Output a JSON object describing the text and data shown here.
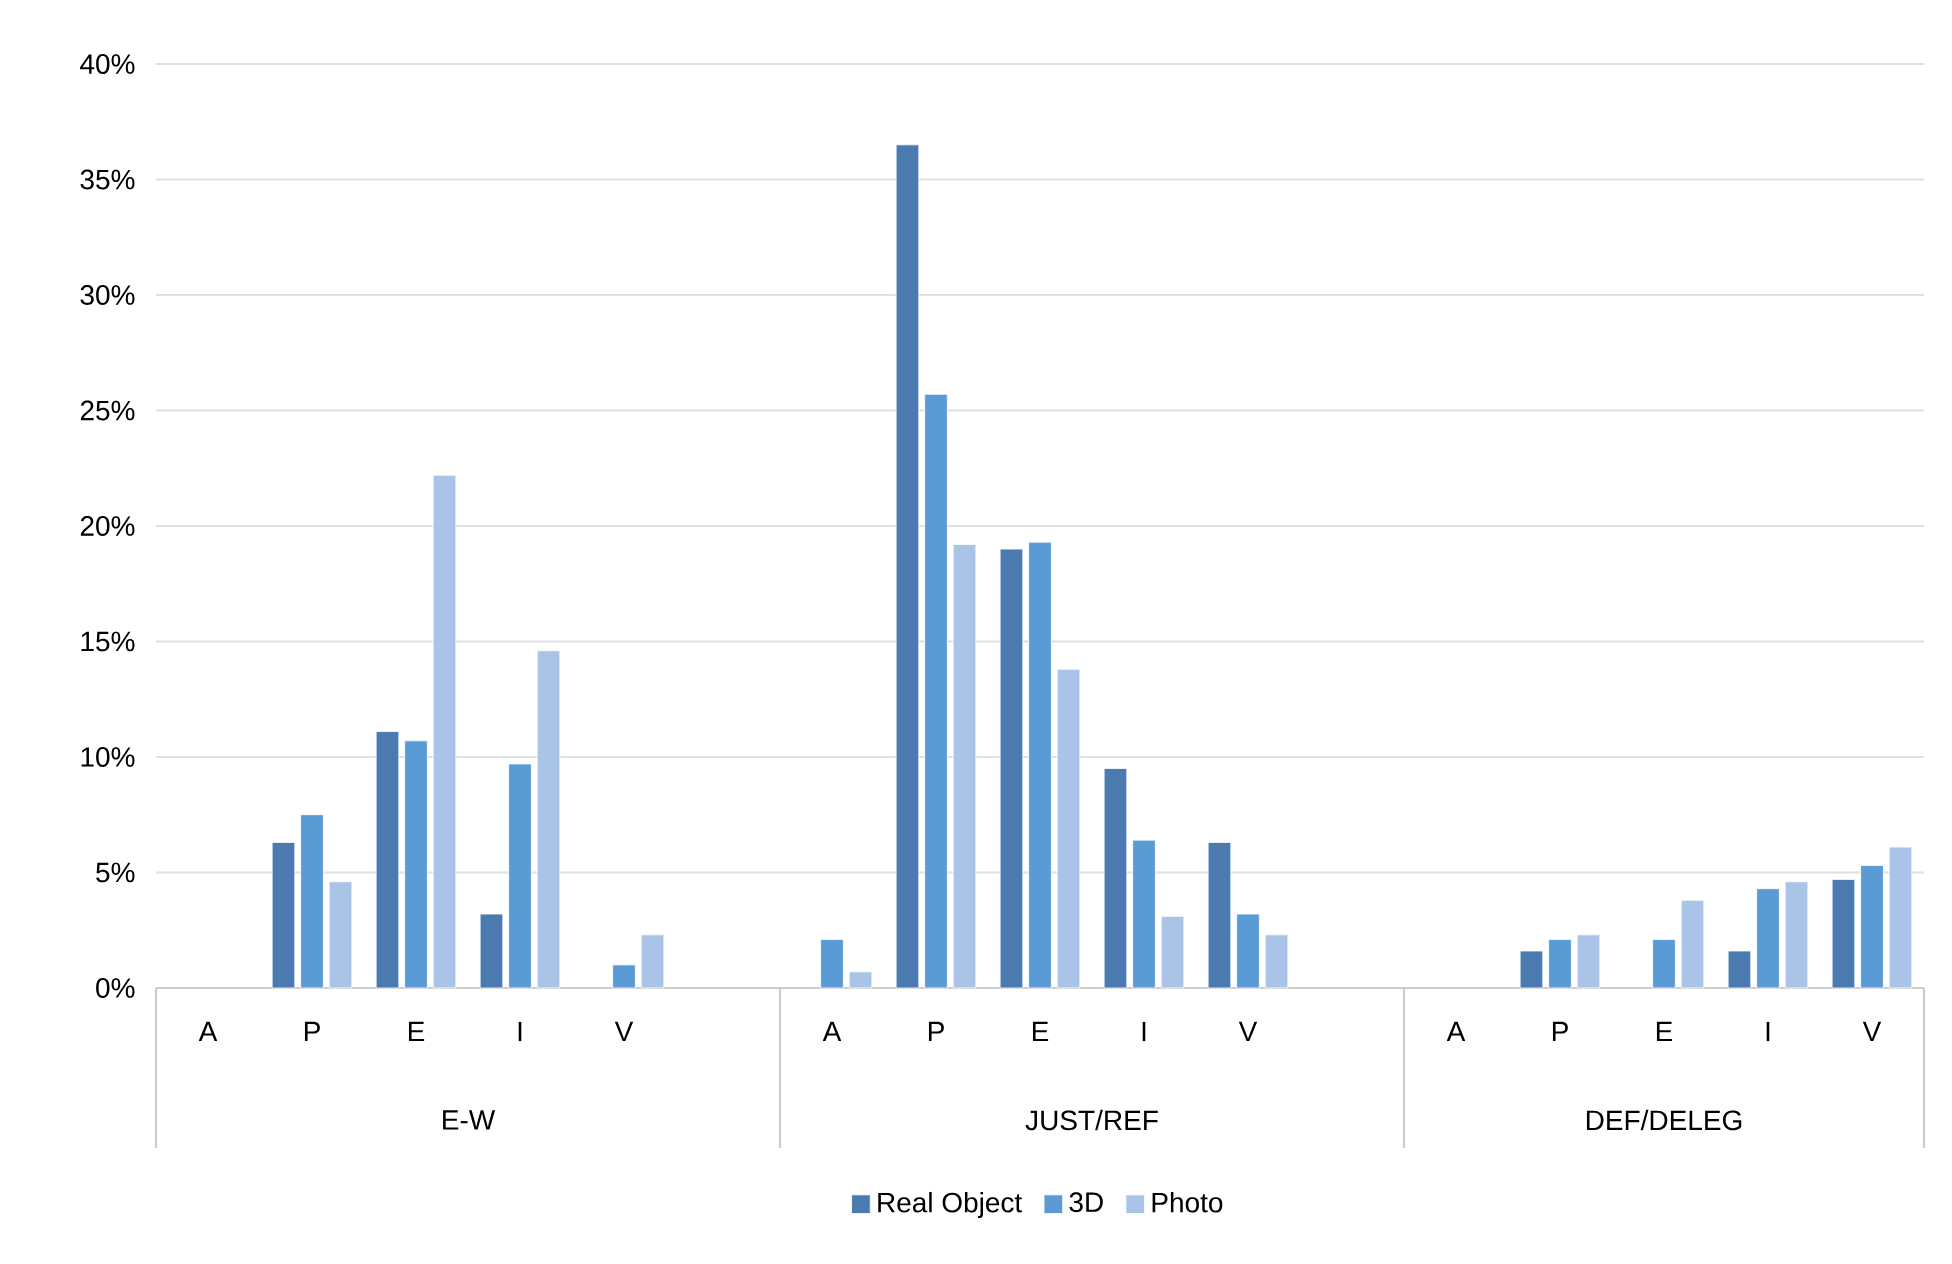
{
  "chart_data": {
    "type": "bar",
    "categories": [
      "A",
      "P",
      "E",
      "I",
      "V",
      null,
      "A",
      "P",
      "E",
      "I",
      "V",
      null,
      "A",
      "P",
      "E",
      "I",
      "V"
    ],
    "annotations": [
      "E-W",
      "JUST/REF",
      "DEF/DELEG"
    ],
    "series": [
      {
        "name": "Real Object",
        "color": "#4a7ab0",
        "values": [
          null,
          6.3,
          11.1,
          3.2,
          null,
          null,
          null,
          36.5,
          19.0,
          9.5,
          6.3,
          null,
          null,
          1.6,
          null,
          1.6,
          4.7
        ]
      },
      {
        "name": "3D",
        "color": "#5b9bd5",
        "values": [
          null,
          7.5,
          10.7,
          9.7,
          1.0,
          null,
          2.1,
          25.7,
          19.3,
          6.4,
          3.2,
          null,
          null,
          2.1,
          2.1,
          4.3,
          5.3
        ]
      },
      {
        "name": "Photo",
        "color": "#a9c4e6",
        "values": [
          null,
          4.6,
          22.2,
          14.6,
          2.3,
          null,
          0.7,
          19.2,
          13.8,
          3.1,
          2.3,
          null,
          null,
          2.3,
          3.8,
          4.6,
          6.1
        ]
      }
    ],
    "ylim": [
      0,
      40
    ],
    "yticks": [
      {
        "value": 0,
        "label": "0%"
      },
      {
        "value": 5,
        "label": "5%"
      },
      {
        "value": 10,
        "label": "10%"
      },
      {
        "value": 15,
        "label": "15%"
      },
      {
        "value": 20,
        "label": "20%"
      },
      {
        "value": 25,
        "label": "25%"
      },
      {
        "value": 30,
        "label": "30%"
      },
      {
        "value": 35,
        "label": "35%"
      },
      {
        "value": 40,
        "label": "40%"
      }
    ],
    "grid": "y",
    "legend": "bottom"
  }
}
